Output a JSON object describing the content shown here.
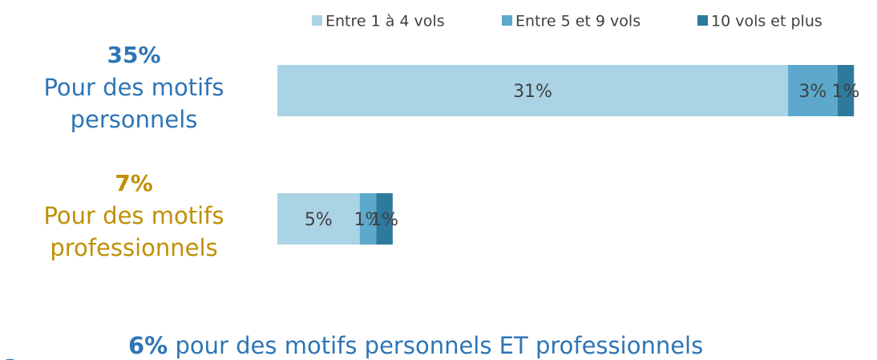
{
  "chart_data": {
    "type": "stacked-bar-horizontal",
    "categories": [
      "Pour des motifs personnels",
      "Pour des motifs professionnels"
    ],
    "totals": [
      35,
      7
    ],
    "total_labels": [
      "35%",
      "7%"
    ],
    "category_colors": [
      "#2e75b6",
      "#bf9000"
    ],
    "series": [
      {
        "name": "Entre 1 à 4 vols",
        "color": "#abd3e6",
        "values": [
          31,
          5
        ],
        "value_labels": [
          "31%",
          "5%"
        ]
      },
      {
        "name": "Entre 5 et 9 vols",
        "color": "#5ca9cd",
        "values": [
          3,
          1
        ],
        "value_labels": [
          "3%",
          "1%"
        ]
      },
      {
        "name": "10 vols et plus",
        "color": "#2e7a9c",
        "values": [
          1,
          1
        ],
        "value_labels": [
          "1%",
          "1%"
        ]
      }
    ],
    "legend": "top",
    "note": {
      "value": 6,
      "label": "6%",
      "text": "pour des motifs personnels ET professionnels"
    }
  }
}
